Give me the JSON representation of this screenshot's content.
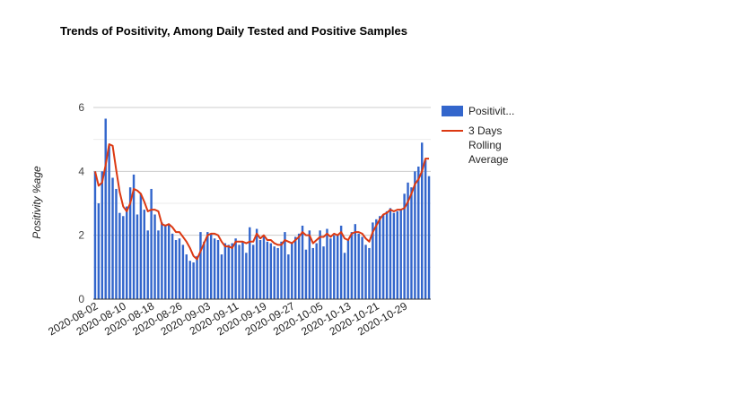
{
  "chart_data": {
    "type": "bar",
    "title": "Trends of Positivity, Among Daily Tested and Positive Samples",
    "xlabel": "",
    "ylabel": "Positivity %age",
    "ylim": [
      0,
      6
    ],
    "yticks": [
      "0",
      "2",
      "4",
      "6"
    ],
    "grid": true,
    "legend_position": "right",
    "x_tick_labels": [
      "2020-08-02",
      "2020-08-10",
      "2020-08-18",
      "2020-08-26",
      "2020-09-03",
      "2020-09-11",
      "2020-09-19",
      "2020-09-27",
      "2020-10-05",
      "2020-10-13",
      "2020-10-21",
      "2020-10-29"
    ],
    "x": [
      "2020-08-02",
      "2020-08-03",
      "2020-08-04",
      "2020-08-05",
      "2020-08-06",
      "2020-08-07",
      "2020-08-08",
      "2020-08-09",
      "2020-08-10",
      "2020-08-11",
      "2020-08-12",
      "2020-08-13",
      "2020-08-14",
      "2020-08-15",
      "2020-08-16",
      "2020-08-17",
      "2020-08-18",
      "2020-08-19",
      "2020-08-20",
      "2020-08-21",
      "2020-08-22",
      "2020-08-23",
      "2020-08-24",
      "2020-08-25",
      "2020-08-26",
      "2020-08-27",
      "2020-08-28",
      "2020-08-29",
      "2020-08-30",
      "2020-08-31",
      "2020-09-01",
      "2020-09-02",
      "2020-09-03",
      "2020-09-04",
      "2020-09-05",
      "2020-09-06",
      "2020-09-07",
      "2020-09-08",
      "2020-09-09",
      "2020-09-10",
      "2020-09-11",
      "2020-09-12",
      "2020-09-13",
      "2020-09-14",
      "2020-09-15",
      "2020-09-16",
      "2020-09-17",
      "2020-09-18",
      "2020-09-19",
      "2020-09-20",
      "2020-09-21",
      "2020-09-22",
      "2020-09-23",
      "2020-09-24",
      "2020-09-25",
      "2020-09-26",
      "2020-09-27",
      "2020-09-28",
      "2020-09-29",
      "2020-09-30",
      "2020-10-01",
      "2020-10-02",
      "2020-10-03",
      "2020-10-04",
      "2020-10-05",
      "2020-10-06",
      "2020-10-07",
      "2020-10-08",
      "2020-10-09",
      "2020-10-10",
      "2020-10-11",
      "2020-10-12",
      "2020-10-13",
      "2020-10-14",
      "2020-10-15",
      "2020-10-16",
      "2020-10-17",
      "2020-10-18",
      "2020-10-19",
      "2020-10-20",
      "2020-10-21",
      "2020-10-22",
      "2020-10-23",
      "2020-10-24",
      "2020-10-25",
      "2020-10-26",
      "2020-10-27",
      "2020-10-28",
      "2020-10-29",
      "2020-10-30",
      "2020-10-31",
      "2020-11-01",
      "2020-11-02",
      "2020-11-03",
      "2020-11-04",
      "2020-11-05"
    ],
    "series": [
      {
        "name": "Positivit...",
        "type": "bar",
        "color": "#3366cc",
        "values": [
          4.0,
          3.0,
          4.0,
          5.65,
          4.8,
          3.8,
          3.45,
          2.7,
          2.6,
          2.9,
          3.5,
          3.9,
          2.65,
          3.3,
          2.8,
          2.15,
          3.45,
          2.65,
          2.15,
          2.4,
          2.3,
          2.35,
          2.05,
          1.85,
          1.9,
          1.7,
          1.4,
          1.2,
          1.15,
          1.35,
          2.1,
          1.8,
          2.1,
          2.05,
          1.9,
          1.85,
          1.4,
          1.75,
          1.7,
          1.75,
          1.9,
          1.7,
          1.8,
          1.45,
          2.25,
          1.7,
          2.2,
          1.85,
          1.95,
          1.8,
          1.75,
          1.65,
          1.6,
          1.8,
          2.1,
          1.4,
          1.75,
          1.95,
          2.05,
          2.3,
          1.55,
          2.15,
          1.6,
          1.75,
          2.15,
          1.65,
          2.2,
          1.9,
          2.0,
          2.0,
          2.3,
          1.45,
          1.85,
          2.1,
          2.35,
          2.05,
          1.95,
          1.7,
          1.6,
          2.4,
          2.5,
          2.6,
          2.65,
          2.75,
          2.85,
          2.7,
          2.75,
          2.8,
          3.3,
          3.65,
          3.5,
          4.0,
          4.15,
          4.9,
          4.35,
          3.85
        ]
      },
      {
        "name": "3 Days Rolling Average",
        "type": "line",
        "color": "#dc3912",
        "values": [
          4.0,
          3.55,
          3.65,
          4.2,
          4.85,
          4.8,
          4.05,
          3.35,
          2.9,
          2.75,
          3.0,
          3.45,
          3.4,
          3.3,
          3.05,
          2.75,
          2.8,
          2.8,
          2.75,
          2.35,
          2.3,
          2.35,
          2.25,
          2.1,
          2.1,
          1.95,
          1.8,
          1.6,
          1.35,
          1.25,
          1.5,
          1.75,
          2.0,
          2.05,
          2.05,
          2.0,
          1.8,
          1.65,
          1.65,
          1.6,
          1.8,
          1.8,
          1.8,
          1.75,
          1.8,
          1.8,
          2.05,
          1.9,
          2.0,
          1.85,
          1.85,
          1.75,
          1.7,
          1.7,
          1.85,
          1.8,
          1.75,
          1.85,
          1.95,
          2.1,
          2.0,
          2.0,
          1.75,
          1.85,
          1.95,
          1.95,
          2.05,
          1.95,
          2.05,
          2.0,
          2.1,
          1.9,
          1.85,
          2.05,
          2.1,
          2.1,
          2.05,
          1.9,
          1.8,
          2.1,
          2.3,
          2.5,
          2.65,
          2.7,
          2.8,
          2.75,
          2.8,
          2.8,
          2.85,
          3.05,
          3.3,
          3.6,
          3.75,
          4.0,
          4.4,
          4.4
        ]
      }
    ]
  },
  "legend": {
    "bar_label": "Positivit...",
    "line_label_lines": [
      "3 Days",
      "Rolling",
      "Average"
    ]
  }
}
